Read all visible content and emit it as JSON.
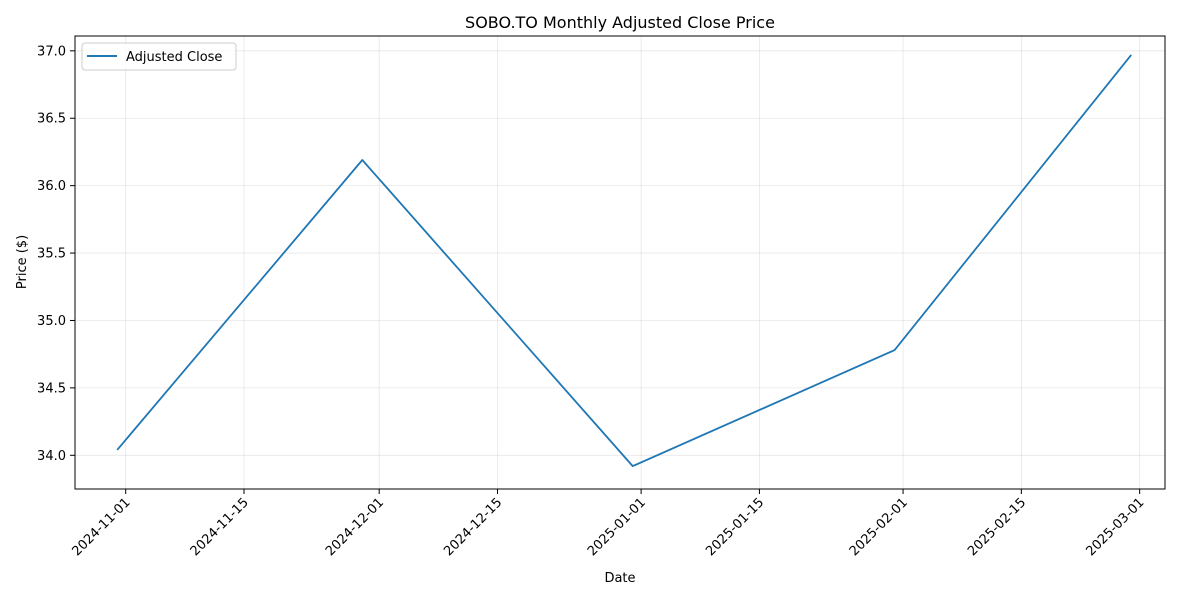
{
  "chart_data": {
    "type": "line",
    "title": "SOBO.TO Monthly Adjusted Close Price",
    "xlabel": "Date",
    "ylabel": "Price ($)",
    "x": [
      "2024-10-31",
      "2024-11-29",
      "2024-12-31",
      "2025-01-31",
      "2025-02-28"
    ],
    "series": [
      {
        "name": "Adjusted Close",
        "values": [
          34.04,
          36.19,
          33.92,
          34.78,
          36.97
        ],
        "color": "#1f77b4"
      }
    ],
    "xlim": [
      "2024-10-26",
      "2025-03-04"
    ],
    "ylim": [
      33.75,
      37.11
    ],
    "x_ticks": [
      "2024-11-01",
      "2024-11-15",
      "2024-12-01",
      "2024-12-15",
      "2025-01-01",
      "2025-01-15",
      "2025-02-01",
      "2025-02-15",
      "2025-03-01"
    ],
    "y_ticks": [
      "34.0",
      "34.5",
      "35.0",
      "35.5",
      "36.0",
      "36.5",
      "37.0"
    ],
    "x_tick_rotation": 45,
    "grid": true,
    "legend": "upper-left"
  }
}
